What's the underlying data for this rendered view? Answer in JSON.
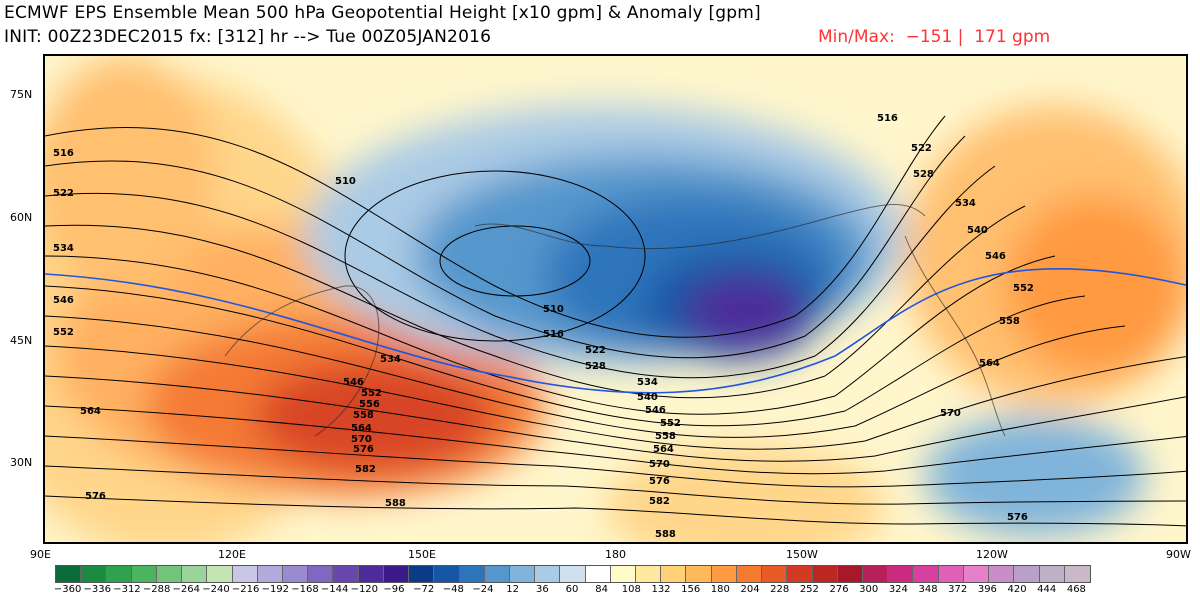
{
  "header": {
    "title": "ECMWF EPS Ensemble Mean 500 hPa Geopotential Height [x10 gpm] & Anomaly [gpm]",
    "subtitle": "INIT: 00Z23DEC2015 fx: [312] hr --> Tue 00Z05JAN2016",
    "minmax": "Min/Max:  −151 |  171 gpm",
    "minmax_color": "#ff3333"
  },
  "axes": {
    "lat_labels": [
      "75N",
      "60N",
      "45N",
      "30N"
    ],
    "lon_labels": [
      "90E",
      "120E",
      "150E",
      "180",
      "150W",
      "120W",
      "90W"
    ]
  },
  "contours": {
    "labels": [
      "516",
      "522",
      "534",
      "546",
      "552",
      "564",
      "576",
      "510",
      "510",
      "516",
      "522",
      "528",
      "534",
      "540",
      "546",
      "552",
      "558",
      "564",
      "570",
      "576",
      "582",
      "588",
      "588",
      "534",
      "546",
      "552",
      "556",
      "558",
      "564",
      "570",
      "576",
      "582",
      "516",
      "522",
      "528",
      "534",
      "540",
      "546",
      "552",
      "558",
      "564",
      "570",
      "576"
    ],
    "line_color": "#000000",
    "highlight_line_color": "#2255dd"
  },
  "colorbar": {
    "labels": [
      "−360",
      "−336",
      "−312",
      "−288",
      "−264",
      "−240",
      "−216",
      "−192",
      "−168",
      "−144",
      "−120",
      "−96",
      "−72",
      "−48",
      "−24",
      "12",
      "36",
      "60",
      "84",
      "108",
      "132",
      "156",
      "180",
      "204",
      "228",
      "252",
      "276",
      "300",
      "324",
      "348",
      "372",
      "396",
      "420",
      "444",
      "468"
    ],
    "colors": [
      "#0b6b3a",
      "#1d8a43",
      "#2ea24f",
      "#4cb35e",
      "#72c47a",
      "#9ad49a",
      "#c4e4b4",
      "#c8c8e6",
      "#b3a9dd",
      "#9a8bd0",
      "#8068c0",
      "#6648ae",
      "#4d2b9a",
      "#3a1a88",
      "#0b3a8a",
      "#1556a6",
      "#2e74bb",
      "#5596cc",
      "#80b4da",
      "#aacbe5",
      "#cfe0ee",
      "#ffffff",
      "#fffbc8",
      "#ffe9a0",
      "#ffd27a",
      "#ffb95a",
      "#ff9a40",
      "#f57a30",
      "#e85a28",
      "#d43a22",
      "#be2620",
      "#a8182a",
      "#b8205a",
      "#cc2a80",
      "#d840a0",
      "#e060b8",
      "#e680c8",
      "#c88ec8",
      "#b8a0c8",
      "#c0b0c8",
      "#c8b8c8"
    ]
  }
}
